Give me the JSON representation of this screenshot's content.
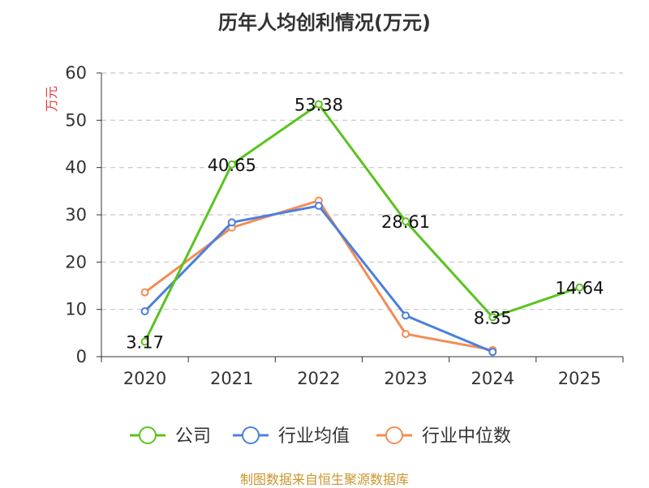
{
  "title": "历年人均创利情况(万元)",
  "footer": "制图数据来自恒生聚源数据库",
  "chart_data": {
    "type": "line",
    "title": "历年人均创利情况(万元)",
    "ylabel": "万元",
    "xlabel": "",
    "categories": [
      "2020",
      "2021",
      "2022",
      "2023",
      "2024",
      "2025"
    ],
    "ylim": [
      0,
      60
    ],
    "yticks": [
      0,
      10,
      20,
      30,
      40,
      50,
      60
    ],
    "grid": true,
    "legend_position": "bottom",
    "series": [
      {
        "name": "公司",
        "color": "#5ac31e",
        "values": [
          3.17,
          40.65,
          53.38,
          28.61,
          8.35,
          14.64
        ],
        "data_labels": [
          "3.17",
          "40.65",
          "53.38",
          "28.61",
          "8.35",
          "14.64"
        ]
      },
      {
        "name": "行业均值",
        "color": "#4b80dc",
        "values": [
          9.6,
          28.4,
          31.9,
          8.7,
          1.0,
          null
        ]
      },
      {
        "name": "行业中位数",
        "color": "#f48c55",
        "values": [
          13.6,
          27.3,
          33.0,
          4.8,
          1.4,
          null
        ]
      }
    ]
  }
}
